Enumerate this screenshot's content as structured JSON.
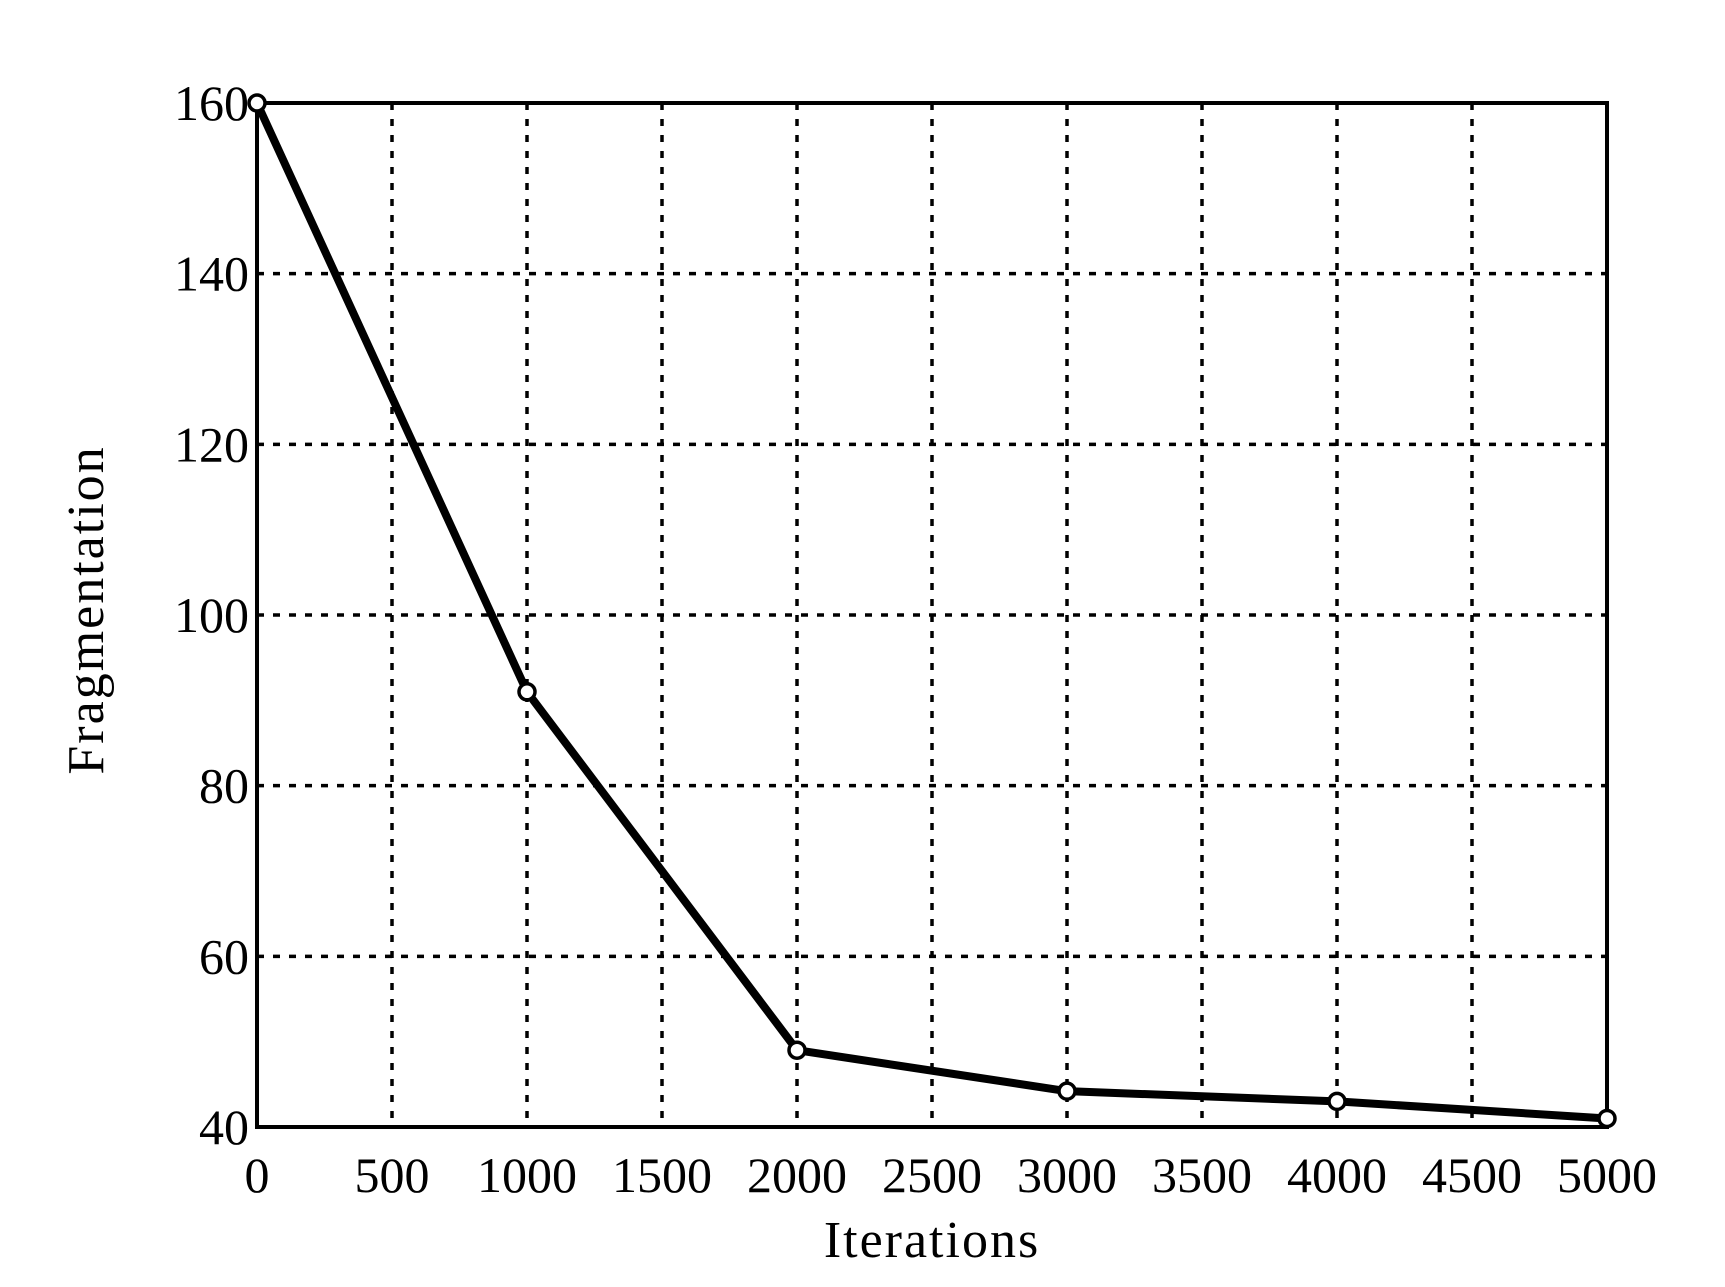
{
  "chart_data": {
    "type": "line",
    "title": "",
    "xlabel": "Iterations",
    "ylabel": "Fragmentation",
    "xlim": [
      0,
      5000
    ],
    "ylim": [
      40,
      160
    ],
    "x_ticks": [
      0,
      500,
      1000,
      1500,
      2000,
      2500,
      3000,
      3500,
      4000,
      4500,
      5000
    ],
    "y_ticks": [
      40,
      60,
      80,
      100,
      120,
      140,
      160
    ],
    "grid": true,
    "legend": "none",
    "series": [
      {
        "x": [
          0,
          1000,
          2000,
          3000,
          4000,
          5000
        ],
        "values": [
          160,
          91,
          49,
          44.2,
          43,
          41
        ],
        "color": "#000000",
        "marker": "open-circle"
      }
    ]
  }
}
